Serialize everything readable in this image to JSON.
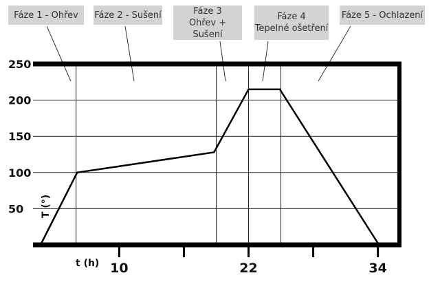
{
  "phases": [
    {
      "line1": "Fáze 1 - Ohřev",
      "line2": ""
    },
    {
      "line1": "Fáze 2 - Sušení",
      "line2": ""
    },
    {
      "line1": "Fáze 3",
      "line2": "Ohřev + Sušení"
    },
    {
      "line1": "Fáze 4",
      "line2": "Tepelné ošetření"
    },
    {
      "line1": "Fáze 5 - Ochlazení",
      "line2": ""
    }
  ],
  "chart_data": {
    "type": "line",
    "title": "",
    "xlabel": "t (h)",
    "ylabel": "T (°)",
    "xlim": [
      2,
      36
    ],
    "ylim": [
      0,
      250
    ],
    "x_ticks": [
      10,
      22,
      34
    ],
    "x_minor_ticks": [
      16,
      28
    ],
    "y_ticks": [
      50,
      100,
      150,
      200,
      250
    ],
    "phase_boundaries": [
      6,
      19,
      22,
      25
    ],
    "grid": "horizontal",
    "series": [
      {
        "x": [
          2.7,
          6.1,
          18.8,
          22.0,
          24.9,
          34.1
        ],
        "y": [
          0,
          100,
          128,
          215,
          215,
          0
        ]
      }
    ]
  }
}
